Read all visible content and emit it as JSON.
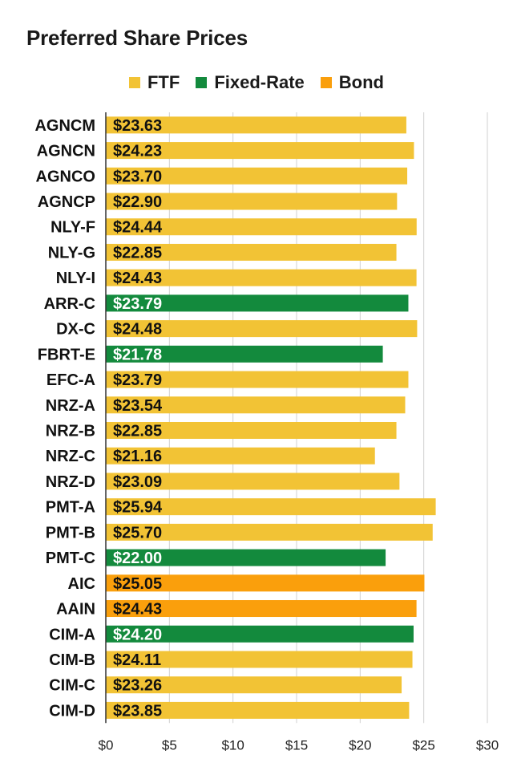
{
  "chart_data": {
    "type": "bar",
    "orientation": "horizontal",
    "title": "Preferred Share Prices",
    "legend_position": "top",
    "legend": [
      {
        "name": "FTF",
        "color": "#F2C335"
      },
      {
        "name": "Fixed-Rate",
        "color": "#138A3D"
      },
      {
        "name": "Bond",
        "color": "#FA9F0C"
      }
    ],
    "categories": [
      "AGNCM",
      "AGNCN",
      "AGNCO",
      "AGNCP",
      "NLY-F",
      "NLY-G",
      "NLY-I",
      "ARR-C",
      "DX-C",
      "FBRT-E",
      "EFC-A",
      "NRZ-A",
      "NRZ-B",
      "NRZ-C",
      "NRZ-D",
      "PMT-A",
      "PMT-B",
      "PMT-C",
      "AIC",
      "AAIN",
      "CIM-A",
      "CIM-B",
      "CIM-C",
      "CIM-D"
    ],
    "values": [
      23.63,
      24.23,
      23.7,
      22.9,
      24.44,
      22.85,
      24.43,
      23.79,
      24.48,
      21.78,
      23.79,
      23.54,
      22.85,
      21.16,
      23.09,
      25.94,
      25.7,
      22.0,
      25.05,
      24.43,
      24.2,
      24.11,
      23.26,
      23.85
    ],
    "value_labels": [
      "$23.63",
      "$24.23",
      "$23.70",
      "$22.90",
      "$24.44",
      "$22.85",
      "$24.43",
      "$23.79",
      "$24.48",
      "$21.78",
      "$23.79",
      "$23.54",
      "$22.85",
      "$21.16",
      "$23.09",
      "$25.94",
      "$25.70",
      "$22.00",
      "$25.05",
      "$24.43",
      "$24.20",
      "$24.11",
      "$23.26",
      "$23.85"
    ],
    "groups": [
      "FTF",
      "FTF",
      "FTF",
      "FTF",
      "FTF",
      "FTF",
      "FTF",
      "Fixed-Rate",
      "FTF",
      "Fixed-Rate",
      "FTF",
      "FTF",
      "FTF",
      "FTF",
      "FTF",
      "FTF",
      "FTF",
      "Fixed-Rate",
      "Bond",
      "Bond",
      "Fixed-Rate",
      "FTF",
      "FTF",
      "FTF"
    ],
    "xlim": [
      0,
      30
    ],
    "xticks": [
      0,
      5,
      10,
      15,
      20,
      25,
      30
    ],
    "xtick_labels": [
      "$0",
      "$5",
      "$10",
      "$15",
      "$20",
      "$25",
      "$30"
    ],
    "grid": true
  }
}
